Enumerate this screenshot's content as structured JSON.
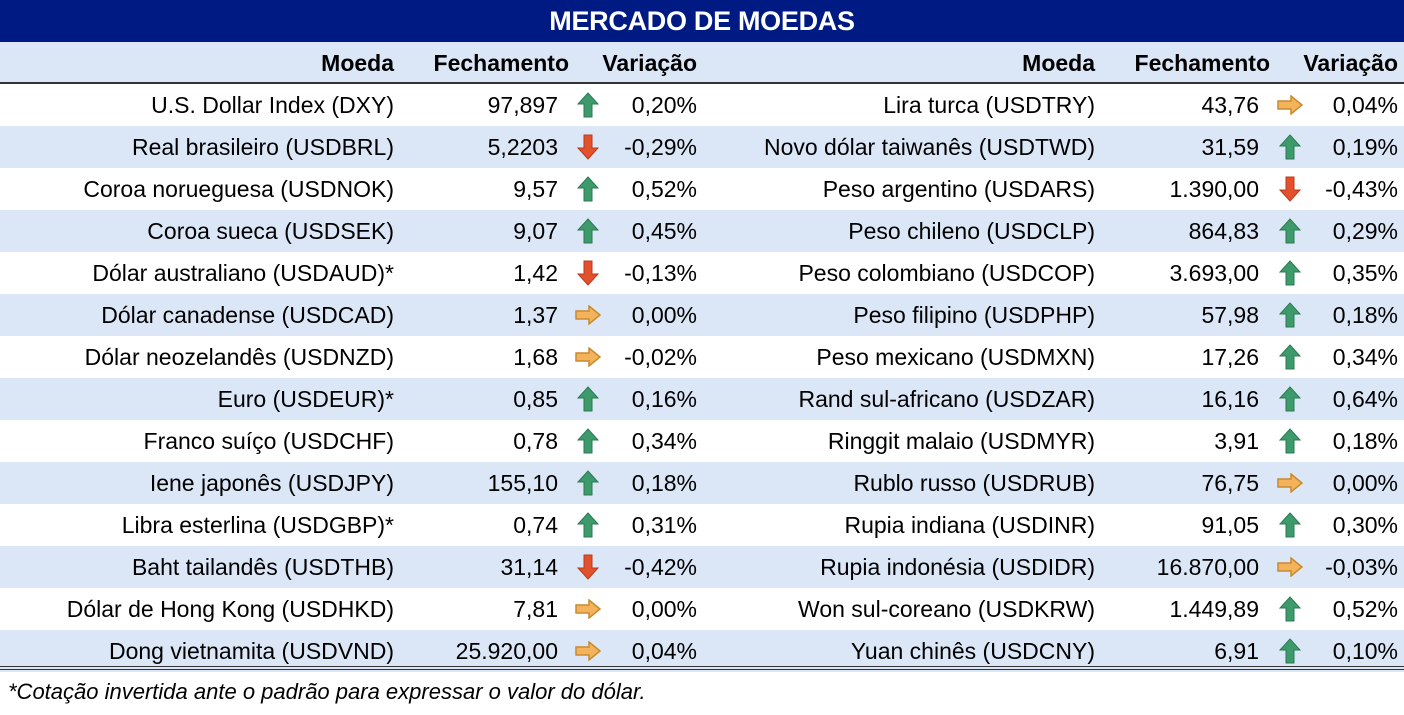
{
  "title": "MERCADO DE MOEDAS",
  "headers": {
    "moeda": "Moeda",
    "fechamento": "Fechamento",
    "variacao": "Variação"
  },
  "colors": {
    "up": "#3d9b6b",
    "down": "#e2502c",
    "flat": "#f2b35a",
    "title_bg": "#001a84",
    "row_shade": "#dbe7f7"
  },
  "left_rows": [
    {
      "name": "U.S. Dollar Index (DXY)",
      "close": "97,897",
      "trend": "up",
      "change": "0,20%"
    },
    {
      "name": "Real brasileiro (USDBRL)",
      "close": "5,2203",
      "trend": "down",
      "change": "-0,29%"
    },
    {
      "name": "Coroa norueguesa (USDNOK)",
      "close": "9,57",
      "trend": "up",
      "change": "0,52%"
    },
    {
      "name": "Coroa sueca (USDSEK)",
      "close": "9,07",
      "trend": "up",
      "change": "0,45%"
    },
    {
      "name": "Dólar australiano (USDAUD)*",
      "close": "1,42",
      "trend": "down",
      "change": "-0,13%"
    },
    {
      "name": "Dólar canadense (USDCAD)",
      "close": "1,37",
      "trend": "flat",
      "change": "0,00%"
    },
    {
      "name": "Dólar neozelandês (USDNZD)",
      "close": "1,68",
      "trend": "flat",
      "change": "-0,02%"
    },
    {
      "name": "Euro (USDEUR)*",
      "close": "0,85",
      "trend": "up",
      "change": "0,16%"
    },
    {
      "name": "Franco suíço (USDCHF)",
      "close": "0,78",
      "trend": "up",
      "change": "0,34%"
    },
    {
      "name": "Iene japonês (USDJPY)",
      "close": "155,10",
      "trend": "up",
      "change": "0,18%"
    },
    {
      "name": "Libra esterlina (USDGBP)*",
      "close": "0,74",
      "trend": "up",
      "change": "0,31%"
    },
    {
      "name": "Baht tailandês (USDTHB)",
      "close": "31,14",
      "trend": "down",
      "change": "-0,42%"
    },
    {
      "name": "Dólar de Hong Kong (USDHKD)",
      "close": "7,81",
      "trend": "flat",
      "change": "0,00%"
    },
    {
      "name": "Dong vietnamita (USDVND)",
      "close": "25.920,00",
      "trend": "flat",
      "change": "0,04%"
    }
  ],
  "right_rows": [
    {
      "name": "Lira turca (USDTRY)",
      "close": "43,76",
      "trend": "flat",
      "change": "0,04%"
    },
    {
      "name": "Novo dólar taiwanês (USDTWD)",
      "close": "31,59",
      "trend": "up",
      "change": "0,19%"
    },
    {
      "name": "Peso argentino (USDARS)",
      "close": "1.390,00",
      "trend": "down",
      "change": "-0,43%"
    },
    {
      "name": "Peso chileno (USDCLP)",
      "close": "864,83",
      "trend": "up",
      "change": "0,29%"
    },
    {
      "name": "Peso colombiano (USDCOP)",
      "close": "3.693,00",
      "trend": "up",
      "change": "0,35%"
    },
    {
      "name": "Peso filipino (USDPHP)",
      "close": "57,98",
      "trend": "up",
      "change": "0,18%"
    },
    {
      "name": "Peso mexicano (USDMXN)",
      "close": "17,26",
      "trend": "up",
      "change": "0,34%"
    },
    {
      "name": "Rand sul-africano (USDZAR)",
      "close": "16,16",
      "trend": "up",
      "change": "0,64%"
    },
    {
      "name": "Ringgit malaio (USDMYR)",
      "close": "3,91",
      "trend": "up",
      "change": "0,18%"
    },
    {
      "name": "Rublo russo (USDRUB)",
      "close": "76,75",
      "trend": "flat",
      "change": "0,00%"
    },
    {
      "name": "Rupia indiana (USDINR)",
      "close": "91,05",
      "trend": "up",
      "change": "0,30%"
    },
    {
      "name": "Rupia indonésia (USDIDR)",
      "close": "16.870,00",
      "trend": "flat",
      "change": "-0,03%"
    },
    {
      "name": "Won sul-coreano (USDKRW)",
      "close": "1.449,89",
      "trend": "up",
      "change": "0,52%"
    },
    {
      "name": "Yuan chinês (USDCNY)",
      "close": "6,91",
      "trend": "up",
      "change": "0,10%"
    }
  ],
  "footnote": "*Cotação invertida ante o padrão para expressar o valor do dólar."
}
